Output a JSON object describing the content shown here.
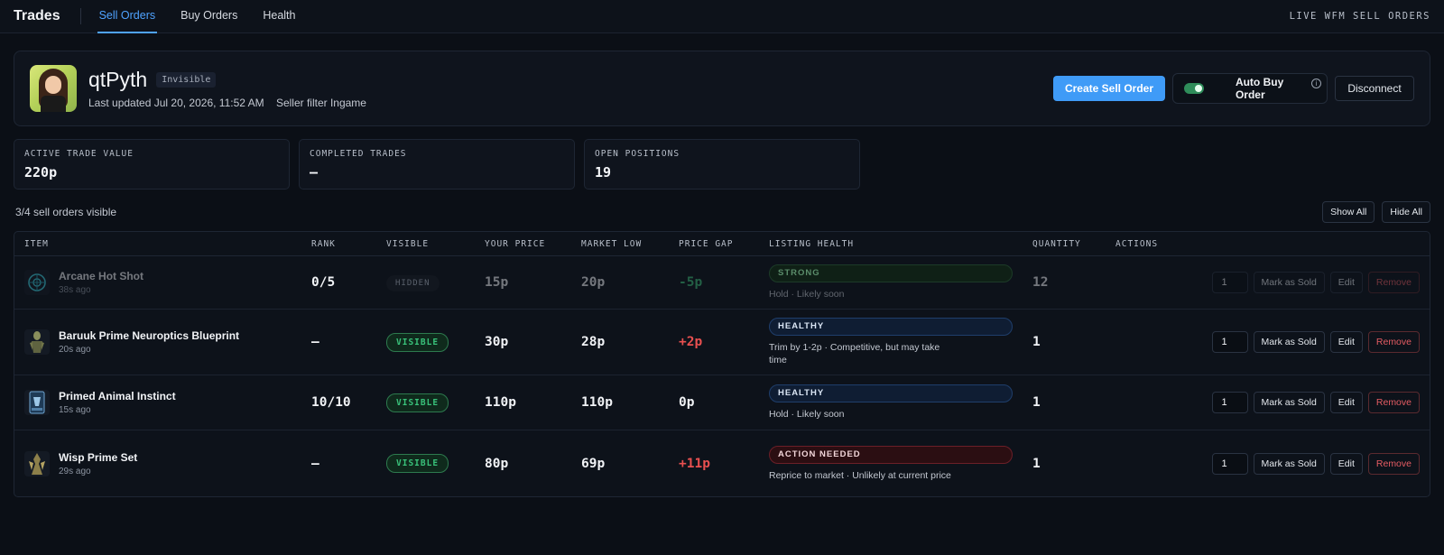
{
  "nav": {
    "brand": "Trades",
    "tabs": [
      {
        "label": "Sell Orders",
        "active": true
      },
      {
        "label": "Buy Orders",
        "active": false
      },
      {
        "label": "Health",
        "active": false
      }
    ],
    "right_label": "LIVE WFM SELL ORDERS"
  },
  "profile": {
    "username": "qtPyth",
    "status_badge": "Invisible",
    "last_updated": "Last updated Jul 20, 2026, 11:52 AM",
    "seller_filter": "Seller filter Ingame",
    "create_button": "Create Sell Order",
    "auto_buy_label": "Auto Buy Order",
    "auto_buy_enabled": true,
    "info_glyph": "i",
    "disconnect_button": "Disconnect"
  },
  "stats": [
    {
      "label": "ACTIVE TRADE VALUE",
      "value": "220p"
    },
    {
      "label": "COMPLETED TRADES",
      "value": "—"
    },
    {
      "label": "OPEN POSITIONS",
      "value": "19"
    }
  ],
  "orders": {
    "count_text": "3/4 sell orders visible",
    "show_all": "Show All",
    "hide_all": "Hide All",
    "columns": [
      "ITEM",
      "RANK",
      "VISIBLE",
      "YOUR PRICE",
      "MARKET LOW",
      "PRICE GAP",
      "LISTING HEALTH",
      "QUANTITY",
      "ACTIONS"
    ],
    "rows": [
      {
        "name": "Arcane Hot Shot",
        "age": "38s ago",
        "icon": "arcane-icon",
        "rank": "0/5",
        "visible": "HIDDEN",
        "your_price": "15p",
        "market_low": "20p",
        "gap": "-5p",
        "health": "STRONG",
        "health_note": "Hold · Likely soon",
        "quantity": "12",
        "qty_input": "1",
        "mark_sold": "Mark as Sold",
        "edit": "Edit",
        "remove": "Remove"
      },
      {
        "name": "Baruuk Prime Neuroptics Blueprint",
        "age": "20s ago",
        "icon": "warframe-blueprint-icon",
        "rank": "—",
        "visible": "VISIBLE",
        "your_price": "30p",
        "market_low": "28p",
        "gap": "+2p",
        "health": "HEALTHY",
        "health_note": "Trim by 1-2p · Competitive, but may take time",
        "quantity": "1",
        "qty_input": "1",
        "mark_sold": "Mark as Sold",
        "edit": "Edit",
        "remove": "Remove"
      },
      {
        "name": "Primed Animal Instinct",
        "age": "15s ago",
        "icon": "mod-card-icon",
        "rank": "10/10",
        "visible": "VISIBLE",
        "your_price": "110p",
        "market_low": "110p",
        "gap": "0p",
        "health": "HEALTHY",
        "health_note": "Hold · Likely soon",
        "quantity": "1",
        "qty_input": "1",
        "mark_sold": "Mark as Sold",
        "edit": "Edit",
        "remove": "Remove"
      },
      {
        "name": "Wisp Prime Set",
        "age": "29s ago",
        "icon": "warframe-set-icon",
        "rank": "—",
        "visible": "VISIBLE",
        "your_price": "80p",
        "market_low": "69p",
        "gap": "+11p",
        "health": "ACTION NEEDED",
        "health_note": "Reprice to market · Unlikely at current price",
        "quantity": "1",
        "qty_input": "1",
        "mark_sold": "Mark as Sold",
        "edit": "Edit",
        "remove": "Remove"
      }
    ]
  },
  "colors": {
    "accent": "#4fa3ff",
    "primary_button": "#3f9bf7",
    "visible_green": "#39c27a",
    "gap_positive": "#e95050",
    "gap_negative": "#3fbf7a",
    "background": "#0b0f16"
  }
}
